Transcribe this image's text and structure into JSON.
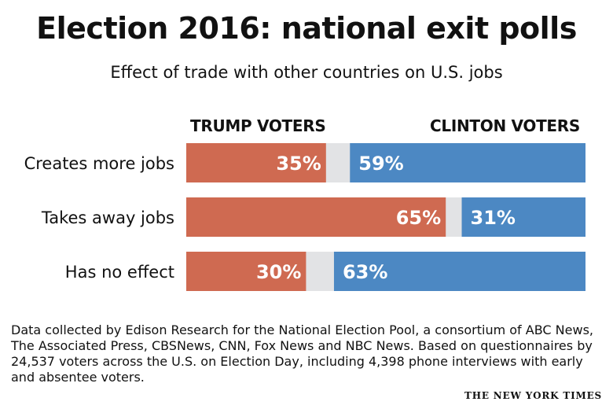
{
  "header": {
    "title": "Election 2016: national exit polls",
    "subtitle": "Effect of trade with other countries on U.S. jobs"
  },
  "chart_data": {
    "type": "bar",
    "stacked": true,
    "orientation": "horizontal",
    "categories": [
      "Creates more jobs",
      "Takes away jobs",
      "Has no effect"
    ],
    "series": [
      {
        "name": "TRUMP VOTERS",
        "values": [
          35,
          65,
          30
        ],
        "color": "#cf6a51"
      },
      {
        "name": "CLINTON VOTERS",
        "values": [
          59,
          31,
          63
        ],
        "color": "#4c88c3"
      }
    ],
    "remainder_color": "#e2e3e5",
    "xlim": [
      0,
      100
    ],
    "value_suffix": "%"
  },
  "footer": {
    "note": "Data collected by Edison Research for the National Election Pool, a consortium of ABC News, The Associated Press, CBSNews, CNN, Fox News and NBC News. Based on questionnaires by 24,537 voters across the U.S. on Election Day, including 4,398 phone interviews with early and absentee voters.",
    "credit": "THE NEW YORK TIMES"
  }
}
